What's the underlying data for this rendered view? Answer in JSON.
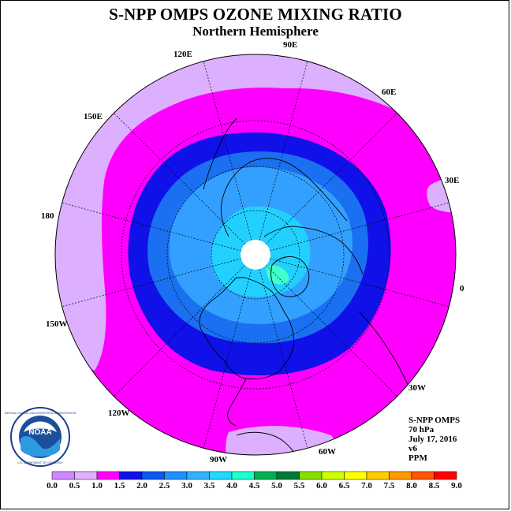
{
  "title": "S-NPP OMPS OZONE MIXING RATIO",
  "subtitle": "Northern Hemisphere",
  "longitude_labels": [
    "120E",
    "90E",
    "60E",
    "150E",
    "30E",
    "180",
    "0",
    "150W",
    "30W",
    "120W",
    "60W",
    "90W"
  ],
  "info": {
    "instrument": "S-NPP OMPS",
    "level": "70 hPa",
    "date": "July 17, 2016",
    "version": "v6",
    "units": "PPM"
  },
  "logo_text": [
    "NOAA",
    "NATIONAL OCEANIC AND ATMOSPHERIC ADMINISTRATION",
    "U.S. DEPARTMENT OF COMMERCE"
  ],
  "colorbar": {
    "labels": [
      "0.0",
      "0.5",
      "1.0",
      "1.5",
      "2.0",
      "2.5",
      "3.0",
      "3.5",
      "4.0",
      "4.5",
      "5.0",
      "5.5",
      "6.0",
      "6.5",
      "7.0",
      "7.5",
      "8.0",
      "8.5",
      "9.0"
    ],
    "colors": [
      "#cc88ff",
      "#e0b0ff",
      "#ff00ff",
      "#1010e8",
      "#0a58f0",
      "#1e90ff",
      "#33b0ff",
      "#22d8ff",
      "#20ffcf",
      "#00b050",
      "#007838",
      "#88dd00",
      "#ccff00",
      "#ffff00",
      "#ffcc00",
      "#ff9900",
      "#ff5500",
      "#ff0000",
      "#8b5a2b"
    ]
  },
  "map_colors": {
    "background_disk": "#ff00ff",
    "low_light": "#ddb0ff",
    "band_blue_dark": "#1010e8",
    "band_blue": "#1a70f0",
    "band_blue_mid": "#33a0ff",
    "band_cyan": "#22d0ff",
    "spot_teal": "#40ffc8",
    "pole_gap": "#ffffff"
  }
}
